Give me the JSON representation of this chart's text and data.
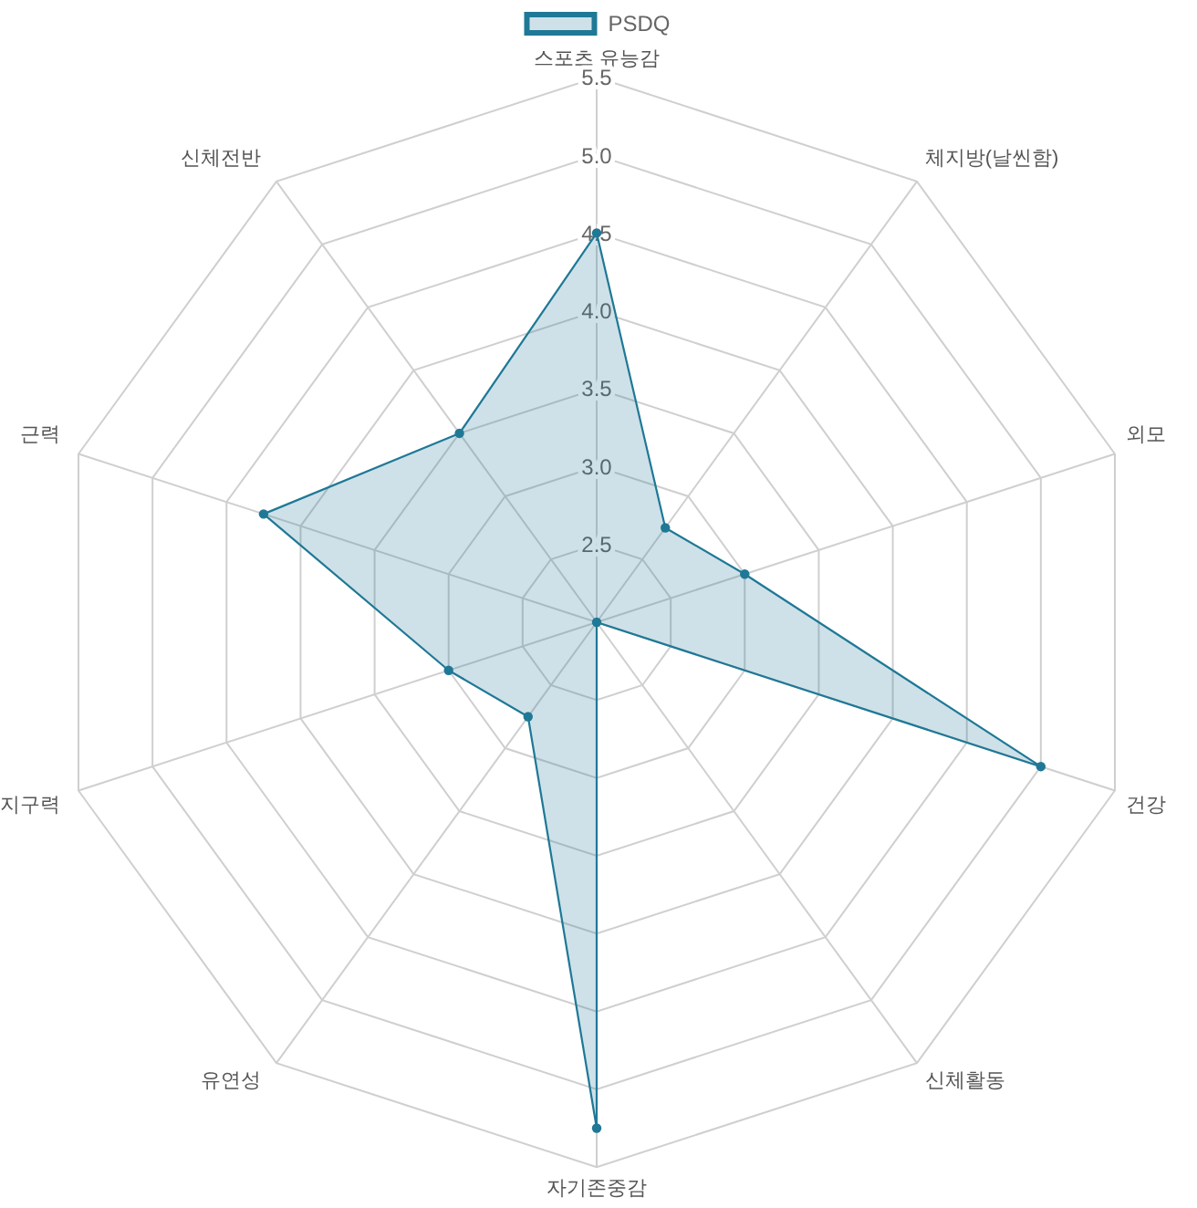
{
  "chart_data": {
    "type": "radar",
    "categories": [
      "스포츠 유능감",
      "체지방(날씬함)",
      "외모",
      "건강",
      "신체활동",
      "자기존중감",
      "유연성",
      "지구력",
      "근력",
      "신체전반"
    ],
    "series": [
      {
        "name": "PSDQ",
        "color": "#1f7896",
        "values": [
          4.5,
          2.75,
          3.0,
          5.0,
          2.0,
          5.25,
          2.75,
          3.0,
          4.25,
          3.5
        ]
      }
    ],
    "ylim": [
      2,
      5.5
    ],
    "yticks": [
      2.5,
      {
        "value": 3,
        "label": "3.0"
      },
      3.5,
      {
        "value": 4,
        "label": "4.0"
      },
      4.5,
      {
        "value": 5,
        "label": "5.0"
      },
      5.5
    ],
    "grid": true,
    "legend": "top",
    "marker": "circle"
  }
}
